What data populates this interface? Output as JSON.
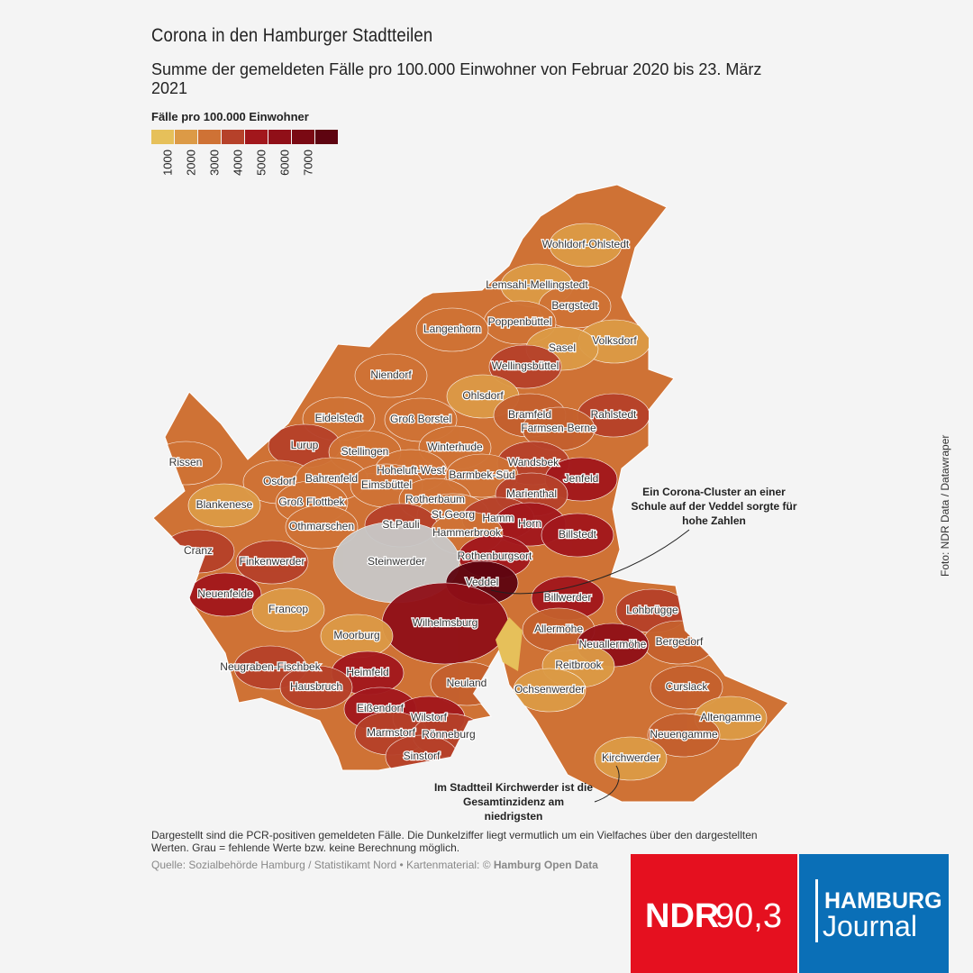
{
  "header": {
    "title": "Corona in den Hamburger Stadtteilen",
    "subtitle": "Summe der gemeldeten Fälle pro 100.000 Einwohner von Februar 2020 bis 23. März 2021"
  },
  "legend": {
    "title": "Fälle pro 100.000 Einwohner",
    "colors": [
      "#e6c05a",
      "#dc9a46",
      "#cf7235",
      "#b6412a",
      "#a2171c",
      "#900f18",
      "#7a0913",
      "#5e0410"
    ],
    "ticks": [
      1000,
      2000,
      3000,
      4000,
      5000,
      6000,
      7000
    ]
  },
  "districts": [
    {
      "label": "Wohldorf-Ohlstedt",
      "color": "#dc9a46"
    },
    {
      "label": "Lemsahl-Mellingstedt",
      "color": "#dc9a46"
    },
    {
      "label": "Bergstedt",
      "color": "#cf7235"
    },
    {
      "label": "Poppenbüttel",
      "color": "#cf7235"
    },
    {
      "label": "Langenhorn",
      "color": "#cf7235"
    },
    {
      "label": "Volksdorf",
      "color": "#dc9a46"
    },
    {
      "label": "Sasel",
      "color": "#dc9a46"
    },
    {
      "label": "Wellingsbüttel",
      "color": "#b6412a"
    },
    {
      "label": "Niendorf",
      "color": "#cf7235"
    },
    {
      "label": "Ohlsdorf",
      "color": "#dc9a46"
    },
    {
      "label": "Rahlstedt",
      "color": "#b6412a"
    },
    {
      "label": "Bramfeld",
      "color": "#c4602e"
    },
    {
      "label": "Eidelstedt",
      "color": "#cf7235"
    },
    {
      "label": "Groß Borstel",
      "color": "#cf7235"
    },
    {
      "label": "Farmsen-Berne",
      "color": "#c4602e"
    },
    {
      "label": "Lurup",
      "color": "#b6412a"
    },
    {
      "label": "Winterhude",
      "color": "#cf7235"
    },
    {
      "label": "Stellingen",
      "color": "#cf7235"
    },
    {
      "label": "Rissen",
      "color": "#cf7235"
    },
    {
      "label": "Wandsbek",
      "color": "#b6412a"
    },
    {
      "label": "Hoheluft-West",
      "color": "#cf7235"
    },
    {
      "label": "Jenfeld",
      "color": "#a2171c"
    },
    {
      "label": "Barmbek-Süd",
      "color": "#cf7235"
    },
    {
      "label": "Osdorf",
      "color": "#cf7235"
    },
    {
      "label": "Bahrenfeld",
      "color": "#cf7235"
    },
    {
      "label": "Eimsbüttel",
      "color": "#cf7235"
    },
    {
      "label": "Marienthal",
      "color": "#b6412a"
    },
    {
      "label": "Rotherbaum",
      "color": "#cf7235"
    },
    {
      "label": "Groß Flottbek",
      "color": "#cf7235"
    },
    {
      "label": "Blankenese",
      "color": "#dc9a46"
    },
    {
      "label": "St.Georg",
      "color": "#cf7235"
    },
    {
      "label": "Hamm",
      "color": "#b6412a"
    },
    {
      "label": "Horn",
      "color": "#a2171c"
    },
    {
      "label": "Othmarschen",
      "color": "#cf7235"
    },
    {
      "label": "St.Pauli",
      "color": "#b6412a"
    },
    {
      "label": "Hammerbrook",
      "color": "#cf7235"
    },
    {
      "label": "Billstedt",
      "color": "#a2171c"
    },
    {
      "label": "Cranz",
      "color": "#b6412a"
    },
    {
      "label": "Rothenburgsort",
      "color": "#a2171c"
    },
    {
      "label": "Finkenwerder",
      "color": "#b6412a"
    },
    {
      "label": "Steinwerder",
      "color": "#c8c8c8"
    },
    {
      "label": "Veddel",
      "color": "#5e0410"
    },
    {
      "label": "Neuenfelde",
      "color": "#a2171c"
    },
    {
      "label": "Billwerder",
      "color": "#a2171c"
    },
    {
      "label": "Francop",
      "color": "#dc9a46"
    },
    {
      "label": "Lohbrügge",
      "color": "#b6412a"
    },
    {
      "label": "Wilhelmsburg",
      "color": "#900f18"
    },
    {
      "label": "Allermöhe",
      "color": "#c4602e"
    },
    {
      "label": "Moorburg",
      "color": "#dc9a46"
    },
    {
      "label": "Bergedorf",
      "color": "#c4602e"
    },
    {
      "label": "Neuallermöhe",
      "color": "#900f18"
    },
    {
      "label": "Reitbrook",
      "color": "#dc9a46"
    },
    {
      "label": "Neugraben-Fischbek",
      "color": "#b6412a"
    },
    {
      "label": "Heimfeld",
      "color": "#a2171c"
    },
    {
      "label": "Neuland",
      "color": "#c4602e"
    },
    {
      "label": "Curslack",
      "color": "#c4602e"
    },
    {
      "label": "Hausbruch",
      "color": "#b6412a"
    },
    {
      "label": "Ochsenwerder",
      "color": "#dc9a46"
    },
    {
      "label": "Eißendorf",
      "color": "#a2171c"
    },
    {
      "label": "Altengamme",
      "color": "#dc9a46"
    },
    {
      "label": "Wilstorf",
      "color": "#a2171c"
    },
    {
      "label": "Marmstorf",
      "color": "#b6412a"
    },
    {
      "label": "Rönneburg",
      "color": "#b6412a"
    },
    {
      "label": "Neuengamme",
      "color": "#c4602e"
    },
    {
      "label": "Sinstorf",
      "color": "#b6412a"
    },
    {
      "label": "Kirchwerder",
      "color": "#dc9a46"
    }
  ],
  "annotations": [
    "Ein Corona-Cluster an einer Schule auf der Veddel sorgte für hohe Zahlen",
    "Im Stadtteil Kirchwerder ist die Gesamtinzidenz am niedrigsten"
  ],
  "footer": {
    "note": "Dargestellt sind die PCR-positiven gemeldeten Fälle. Die Dunkelziffer liegt vermutlich um ein Vielfaches über den dargestellten Werten. Grau = fehlende Werte bzw. keine Berechnung möglich.",
    "source": "Quelle: Sozialbehörde Hamburg / Statistikamt Nord • Kartenmaterial: ©",
    "source_bold": "Hamburg Open Data",
    "credit": "Foto:  NDR Data / Datawraper"
  },
  "logos": {
    "ndr": "NDR",
    "ndr_station": "90,3",
    "hj_top": "HAMBURG",
    "hj_bottom": "Journal"
  }
}
